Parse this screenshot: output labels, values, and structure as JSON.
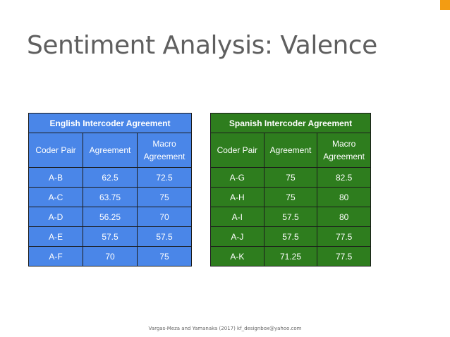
{
  "slide": {
    "title": "Sentiment Analysis: Valence",
    "footer": "Vargas-Meza and Yamanaka (2017) kf_designbox@yahoo.com",
    "accent_color": "#f39c12"
  },
  "english_table": {
    "caption": "English Intercoder Agreement",
    "color": "#4a86e8",
    "headers": [
      "Coder Pair",
      "Agreement",
      "Macro Agreement"
    ],
    "rows": [
      [
        "A-B",
        "62.5",
        "72.5"
      ],
      [
        "A-C",
        "63.75",
        "75"
      ],
      [
        "A-D",
        "56.25",
        "70"
      ],
      [
        "A-E",
        "57.5",
        "57.5"
      ],
      [
        "A-F",
        "70",
        "75"
      ]
    ]
  },
  "spanish_table": {
    "caption": "Spanish Intercoder Agreement",
    "color": "#2e7d1e",
    "headers": [
      "Coder Pair",
      "Agreement",
      "Macro Agreement"
    ],
    "rows": [
      [
        "A-G",
        "75",
        "82.5"
      ],
      [
        "A-H",
        "75",
        "80"
      ],
      [
        "A-I",
        "57.5",
        "80"
      ],
      [
        "A-J",
        "57.5",
        "77.5"
      ],
      [
        "A-K",
        "71.25",
        "77.5"
      ]
    ]
  }
}
